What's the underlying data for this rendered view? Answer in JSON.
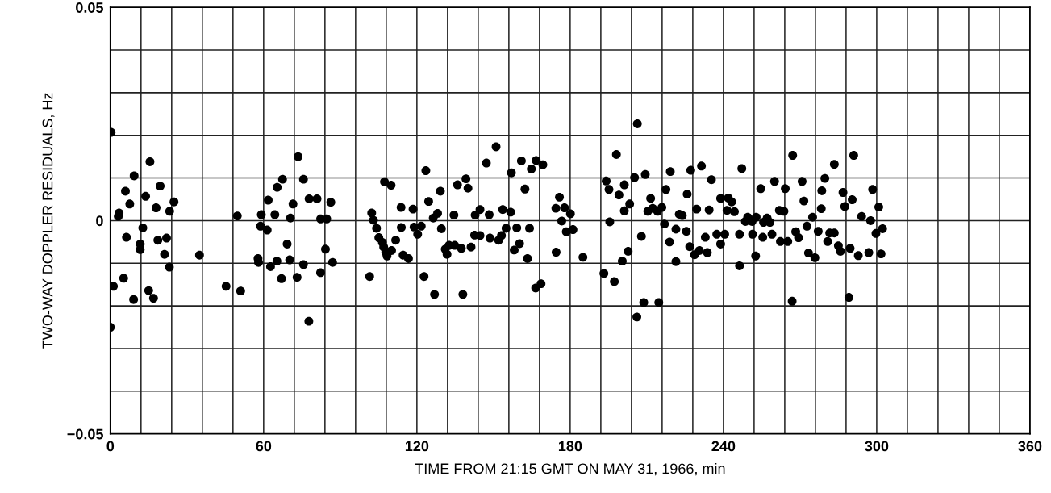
{
  "chart_data": {
    "type": "scatter",
    "xlabel": "TIME FROM 21:15 GMT ON MAY 31, 1966, min",
    "ylabel": "TWO-WAY DOPPLER RESIDUALS, Hz",
    "xlim": [
      0,
      360
    ],
    "xticks": [
      0,
      {
        "value": 12,
        "label": null
      },
      {
        "value": 24,
        "label": null
      },
      {
        "value": 36,
        "label": null
      },
      {
        "value": 48,
        "label": null
      },
      60,
      {
        "value": 72,
        "label": null
      },
      {
        "value": 84,
        "label": null
      },
      {
        "value": 96,
        "label": null
      },
      {
        "value": 108,
        "label": null
      },
      120,
      {
        "value": 132,
        "label": null
      },
      {
        "value": 144,
        "label": null
      },
      {
        "value": 156,
        "label": null
      },
      {
        "value": 168,
        "label": null
      },
      180,
      {
        "value": 192,
        "label": null
      },
      {
        "value": 204,
        "label": null
      },
      {
        "value": 216,
        "label": null
      },
      {
        "value": 228,
        "label": null
      },
      240,
      {
        "value": 252,
        "label": null
      },
      {
        "value": 264,
        "label": null
      },
      {
        "value": 276,
        "label": null
      },
      {
        "value": 288,
        "label": null
      },
      300,
      {
        "value": 312,
        "label": null
      },
      {
        "value": 324,
        "label": null
      },
      {
        "value": 336,
        "label": null
      },
      {
        "value": 348,
        "label": null
      },
      360
    ],
    "ylim": [
      -0.05,
      0.05
    ],
    "yticks": [
      {
        "value": -0.05,
        "label": "−0.05"
      },
      {
        "value": -0.04,
        "label": null
      },
      {
        "value": -0.03,
        "label": null
      },
      {
        "value": -0.02,
        "label": null
      },
      {
        "value": -0.01,
        "label": null
      },
      {
        "value": 0,
        "label": "0"
      },
      {
        "value": 0.01,
        "label": null
      },
      {
        "value": 0.02,
        "label": null
      },
      {
        "value": 0.03,
        "label": null
      },
      {
        "value": 0.04,
        "label": null
      },
      {
        "value": 0.05,
        "label": "0.05"
      }
    ],
    "grid": true,
    "marker": "circle",
    "series": [
      {
        "color": "#000000",
        "x": [
          0.3,
          15.5,
          9.3,
          5.9,
          19.5,
          13.8,
          7.6,
          17.9,
          24.9,
          23.2,
          3.4,
          3.1,
          49.7,
          12.7,
          6.3,
          11.7,
          11.7,
          18.6,
          22.0,
          21.2,
          23.1,
          34.9,
          5.2,
          1.2,
          15.0,
          16.9,
          9.1,
          45.3,
          51.0,
          0,
          73.5,
          67.4,
          75.6,
          65.3,
          61.8,
          71.5,
          77.8,
          80.9,
          86.3,
          59.1,
          64.4,
          70.5,
          82.3,
          84.7,
          58.8,
          61.4,
          69.2,
          84.2,
          57.8,
          58.0,
          65.2,
          62.7,
          70.2,
          75.6,
          87.0,
          82.3,
          67.0,
          73.1,
          77.7,
          101.5,
          107.3,
          109.9,
          102.3,
          103.0,
          104.2,
          105.1,
          106.5,
          107.0,
          107.8,
          108.3,
          110.1,
          111.7,
          113.8,
          113.9,
          114.6,
          116.7,
          118.5,
          118.9,
          120.3,
          121.7,
          122.8,
          123.5,
          124.6,
          126.4,
          128.1,
          129.2,
          129.6,
          126.9,
          131.1,
          131.8,
          132.6,
          134.8,
          137.4,
          134.5,
          135.9,
          139.2,
          140.0,
          138.0,
          141.2,
          142.8,
          144.7,
          142.6,
          144.7,
          147.2,
          148.3,
          148.6,
          151.0,
          152.0,
          153.1,
          153.6,
          154.9,
          156.7,
          157.0,
          158.1,
          159.1,
          160.2,
          160.9,
          162.3,
          163.3,
          164.1,
          164.8,
          166.7,
          169.3,
          166.5,
          168.6,
          174.4,
          175.8,
          177.8,
          180.1,
          176.7,
          178.5,
          181.1,
          174.5,
          185.0,
          193.2,
          197.3,
          194.1,
          195.2,
          198.1,
          199.1,
          201.2,
          201.2,
          195.5,
          200.4,
          206.3,
          203.3,
          205.2,
          209.4,
          211.5,
          207.9,
          202.7,
          210.4,
          212.3,
          214.2,
          215.9,
          217.5,
          219.2,
          216.9,
          218.9,
          221.4,
          221.4,
          222.7,
          223.9,
          225.5,
          225.8,
          227.2,
          226.8,
          228.7,
          230.6,
          233.7,
          229.5,
          231.4,
          232.9,
          234.4,
          235.3,
          237.4,
          238.9,
          238.9,
          240.5,
          241.4,
          241.9,
          243.2,
          244.3,
          246.3,
          246.3,
          247.2,
          248.6,
          249.5,
          251.4,
          251.2,
          252.8,
          252.6,
          254.6,
          255.4,
          255.7,
          257.1,
          258.2,
          259.0,
          260.0,
          261.9,
          263.7,
          264.2,
          262.3,
          265.2,
          267.1,
          266.9,
          268.3,
          269.4,
          270.8,
          271.5,
          272.7,
          273.3,
          274.9,
          275.8,
          277.1,
          278.5,
          278.3,
          279.7,
          280.8,
          281.6,
          283.4,
          283.4,
          285.0,
          285.8,
          286.8,
          287.5,
          289.6,
          289.1,
          290.4,
          291.0,
          292.8,
          294.1,
          296.9,
          297.6,
          298.4,
          299.7,
          300.8,
          301.7,
          302.3,
          208.8,
          214.7,
          206.1
        ],
        "values": [
          0.0207,
          0.0138,
          0.0105,
          0.0069,
          0.0081,
          0.0057,
          0.0039,
          0.003,
          0.0044,
          0.0022,
          0.0018,
          0.001,
          0.0011,
          -0.0017,
          -0.0039,
          -0.0055,
          -0.0068,
          -0.0046,
          -0.0041,
          -0.0079,
          -0.0109,
          -0.0081,
          -0.0135,
          -0.0154,
          -0.0164,
          -0.0182,
          -0.0185,
          -0.0154,
          -0.0165,
          -0.025,
          0.015,
          0.0097,
          0.0097,
          0.0078,
          0.0048,
          0.0039,
          0.0051,
          0.0051,
          0.0043,
          0.0014,
          0.0014,
          0.0006,
          0.0004,
          0.0004,
          -0.0013,
          -0.0022,
          -0.0055,
          -0.0067,
          -0.0089,
          -0.0098,
          -0.0095,
          -0.0108,
          -0.0092,
          -0.0103,
          -0.0098,
          -0.0122,
          -0.0136,
          -0.0133,
          -0.0236,
          -0.0131,
          0.0091,
          0.0083,
          0.0018,
          0.0001,
          -0.0018,
          -0.004,
          -0.0051,
          -0.0062,
          -0.0074,
          -0.0083,
          -0.007,
          -0.0046,
          0.0031,
          -0.0016,
          -0.0081,
          -0.0089,
          0.0027,
          -0.0015,
          -0.0032,
          -0.0013,
          -0.0131,
          0.0117,
          0.0045,
          0.0006,
          0.0017,
          0.0069,
          -0.0019,
          -0.0173,
          -0.0067,
          -0.0079,
          -0.0058,
          -0.0058,
          -0.0065,
          0.0013,
          0.0084,
          0.0098,
          0.0076,
          -0.0173,
          -0.0062,
          0.0013,
          0.0026,
          -0.0034,
          -0.0035,
          0.0135,
          0.0014,
          -0.0041,
          0.0173,
          -0.0046,
          -0.0035,
          0.0026,
          -0.0018,
          0.002,
          0.0112,
          -0.0069,
          -0.0017,
          -0.0054,
          0.014,
          0.0074,
          -0.0089,
          -0.0018,
          0.0121,
          0.0141,
          0.0131,
          -0.0158,
          -0.0148,
          0.0029,
          0.0055,
          0.003,
          0.0016,
          -0.0001,
          -0.0026,
          -0.0021,
          -0.0074,
          -0.0086,
          -0.0124,
          -0.0143,
          0.0093,
          0.0073,
          0.0155,
          0.006,
          0.0084,
          0.0023,
          -0.0003,
          -0.0095,
          0.0227,
          0.0039,
          0.0101,
          0.0108,
          0.0052,
          -0.0037,
          -0.0072,
          0.0022,
          0.0029,
          0.0022,
          0.0031,
          0.0073,
          0.0115,
          -0.0008,
          -0.005,
          -0.002,
          -0.0096,
          0.0015,
          0.0012,
          -0.0025,
          0.0062,
          0.0118,
          -0.0061,
          -0.008,
          -0.007,
          -0.0075,
          0.0027,
          0.0128,
          -0.0039,
          0.0025,
          0.0096,
          -0.0032,
          -0.0055,
          0.0052,
          -0.0032,
          0.0024,
          0.0053,
          0.0044,
          0.0021,
          -0.0032,
          -0.0106,
          0.0122,
          -0.0002,
          0.0008,
          -0.0032,
          -0.0002,
          0.0008,
          -0.0083,
          0.0075,
          -0.0039,
          -0.0004,
          0.0006,
          -0.0004,
          -0.0032,
          0.0092,
          0.0024,
          0.0022,
          0.0075,
          -0.0049,
          -0.0049,
          0.0153,
          -0.0189,
          -0.0026,
          -0.004,
          0.0092,
          0.0046,
          -0.0013,
          -0.0076,
          0.0008,
          -0.0087,
          -0.0025,
          0.007,
          0.0028,
          0.0099,
          -0.0049,
          -0.0029,
          -0.0029,
          0.0132,
          -0.0059,
          -0.0072,
          0.0066,
          0.0033,
          -0.0065,
          -0.018,
          0.0049,
          0.0153,
          -0.0082,
          0.001,
          -0.0075,
          0.0,
          0.0073,
          -0.003,
          0.0032,
          -0.0078,
          -0.0019,
          -0.0192,
          -0.0192,
          -0.0226
        ]
      }
    ]
  }
}
